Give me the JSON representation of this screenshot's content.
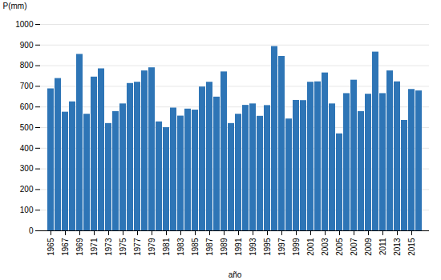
{
  "chart_data": {
    "type": "bar",
    "categories": [
      "1965",
      null,
      "1967",
      null,
      "1969",
      null,
      "1971",
      null,
      "1973",
      null,
      "1975",
      null,
      "1977",
      null,
      "1979",
      null,
      "1981",
      null,
      "1983",
      null,
      "1985",
      null,
      "1987",
      null,
      "1989",
      null,
      "1991",
      null,
      "1993",
      null,
      "1995",
      null,
      "1997",
      null,
      "1999",
      null,
      "2001",
      null,
      "2003",
      null,
      "2005",
      null,
      "2007",
      null,
      "2009",
      null,
      "2011",
      null,
      "2013",
      null,
      "2015",
      null
    ],
    "values": [
      688,
      738,
      575,
      625,
      855,
      565,
      745,
      785,
      520,
      578,
      615,
      714,
      720,
      775,
      790,
      528,
      500,
      595,
      556,
      590,
      585,
      697,
      720,
      648,
      770,
      520,
      565,
      608,
      615,
      555,
      607,
      893,
      845,
      542,
      632,
      631,
      720,
      722,
      765,
      615,
      470,
      665,
      730,
      578,
      662,
      866,
      665,
      775,
      722,
      535,
      685,
      678
    ],
    "color": "#2e75b6",
    "xlabel": "año",
    "ylabel": "P(mm)",
    "ylim": [
      0,
      1000
    ],
    "yticks": [
      0,
      100,
      200,
      300,
      400,
      500,
      600,
      700,
      800,
      900,
      1000
    ],
    "grid": true
  }
}
